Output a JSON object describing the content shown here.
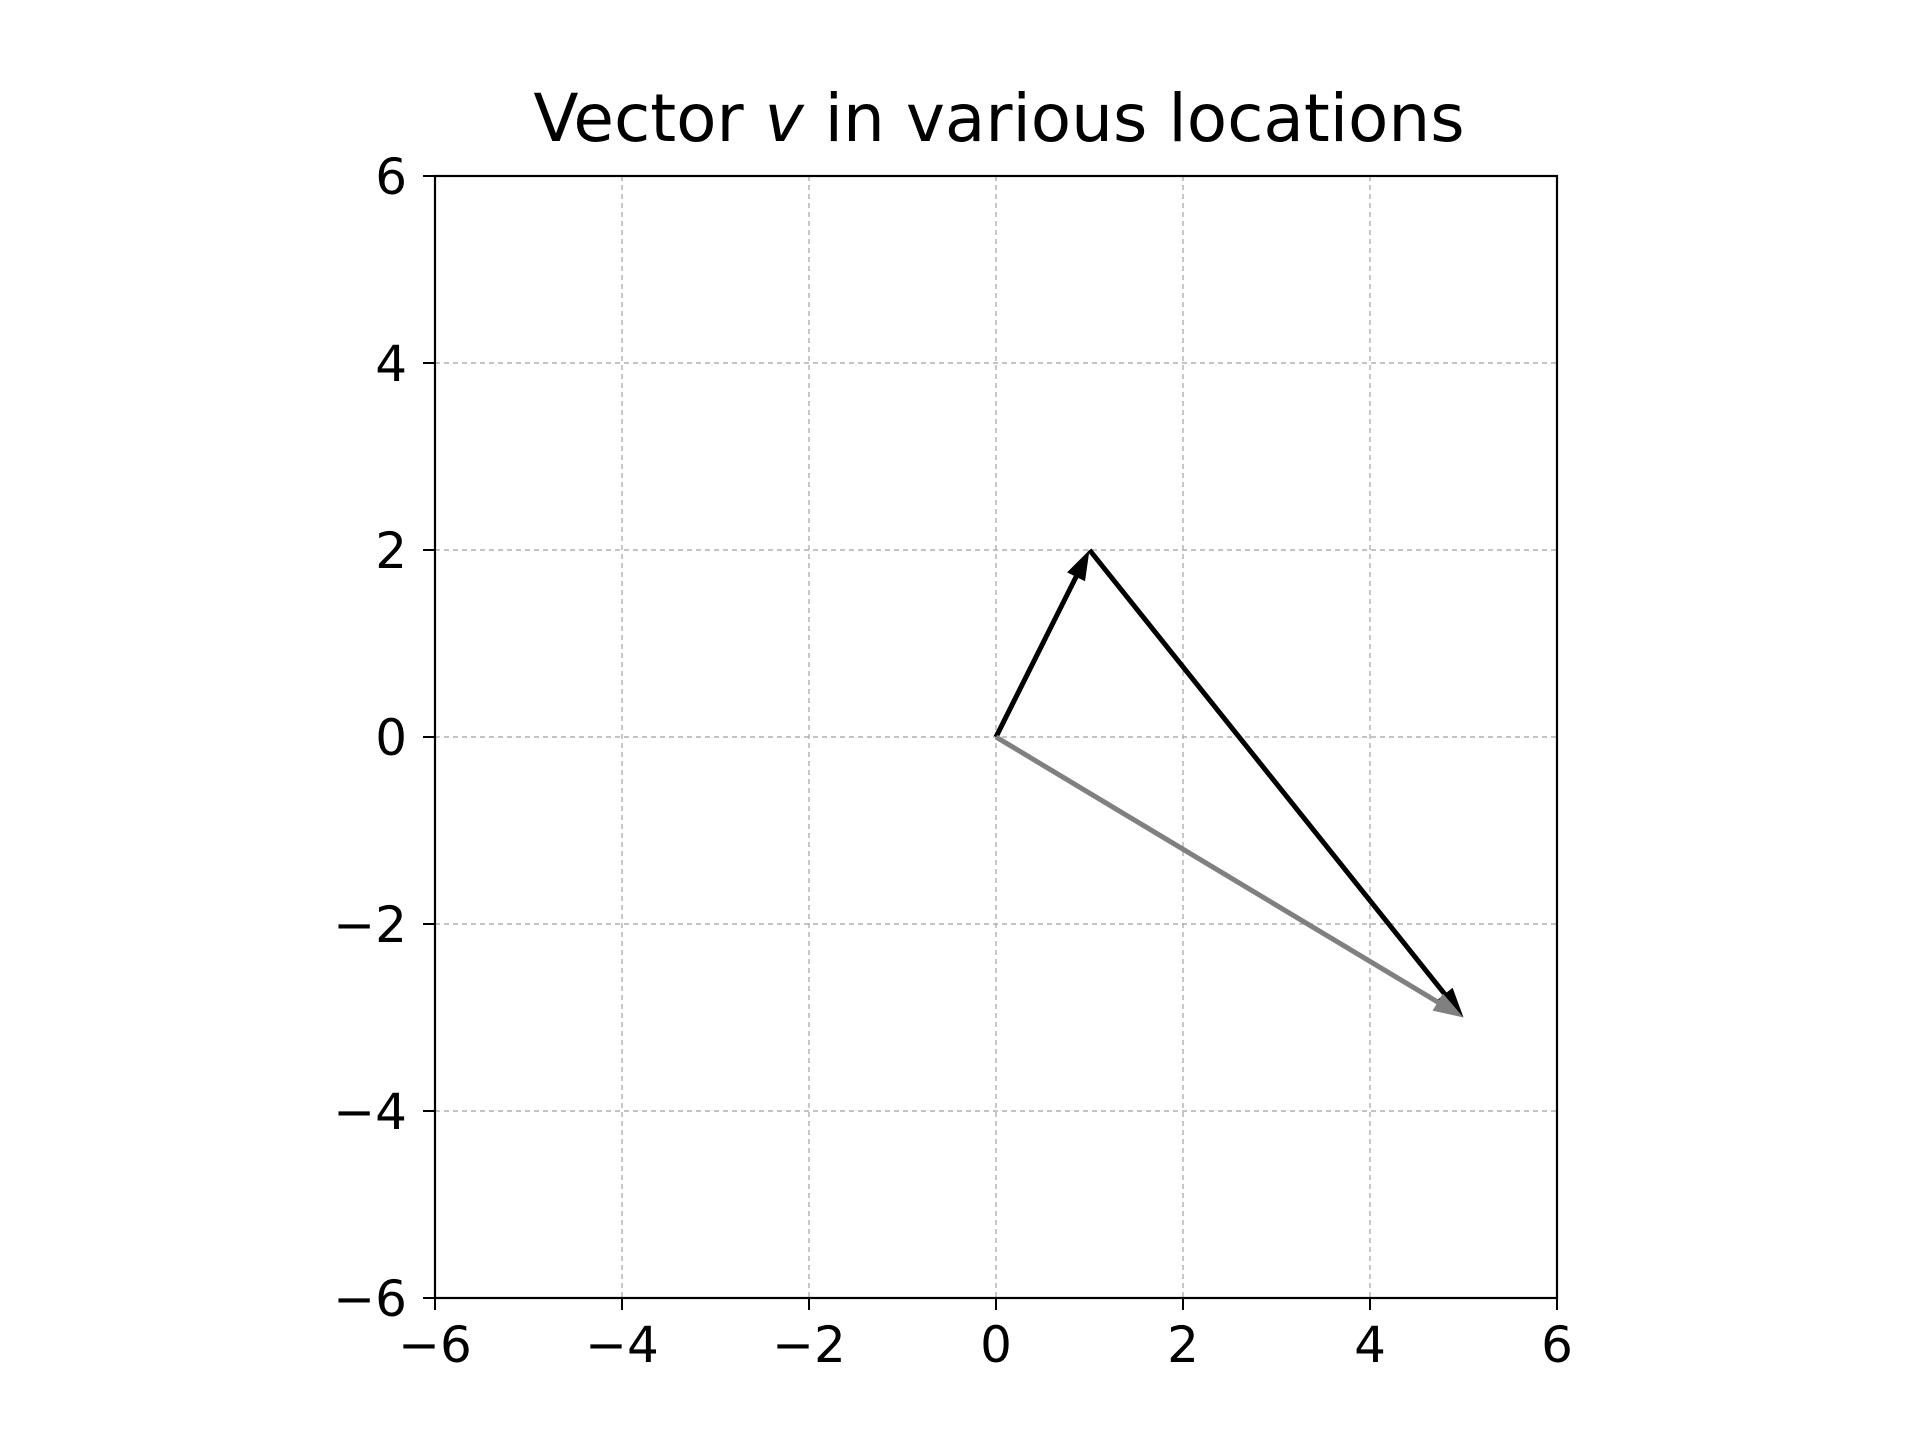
{
  "chart_data": {
    "type": "quiver",
    "title": {
      "before": "Vector ",
      "math": "v",
      "after": " in various locations"
    },
    "xlabel": "",
    "ylabel": "",
    "xlim": [
      -6,
      6
    ],
    "ylim": [
      -6,
      6
    ],
    "xticks": [
      -6,
      -4,
      -2,
      0,
      2,
      4,
      6
    ],
    "yticks": [
      -6,
      -4,
      -2,
      0,
      2,
      4,
      6
    ],
    "x_tick_labels": [
      "−6",
      "−4",
      "−2",
      "0",
      "2",
      "4",
      "6"
    ],
    "y_tick_labels": [
      "−6",
      "−4",
      "−2",
      "0",
      "2",
      "4",
      "6"
    ],
    "grid": true,
    "grid_style": "dashed",
    "grid_color": "#b0b0b0",
    "aspect": "equal",
    "vectors": [
      {
        "start": [
          0,
          0
        ],
        "end": [
          1,
          2
        ],
        "color": "#000000"
      },
      {
        "start": [
          1,
          2
        ],
        "end": [
          5,
          -3
        ],
        "color": "#000000"
      },
      {
        "start": [
          0,
          0
        ],
        "end": [
          5,
          -3
        ],
        "color": "#808080"
      }
    ]
  }
}
